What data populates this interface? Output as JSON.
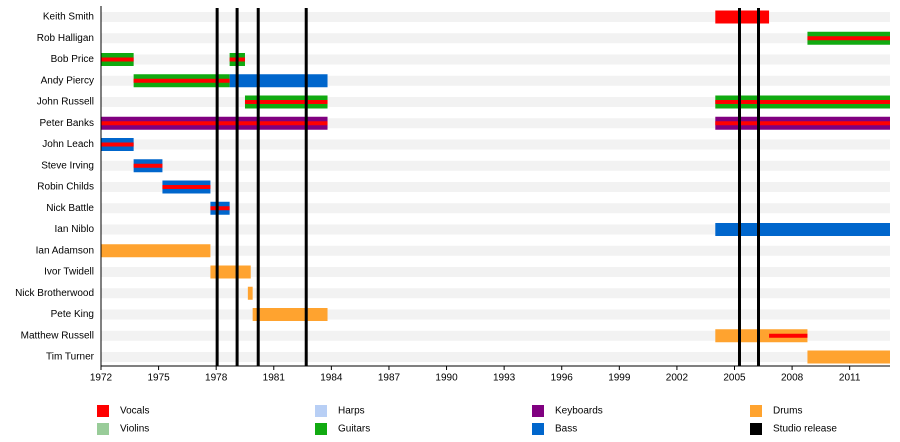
{
  "chart_data": {
    "type": "timeline",
    "xlim": [
      1972,
      2013.1
    ],
    "xticks": [
      1972,
      1975,
      1978,
      1981,
      1984,
      1987,
      1990,
      1993,
      1996,
      1999,
      2002,
      2005,
      2008,
      2011
    ],
    "roles": [
      {
        "name": "Vocals",
        "color": "#ff0000"
      },
      {
        "name": "Violins",
        "color": "#99cc99"
      },
      {
        "name": "Harps",
        "color": "#b8cff5"
      },
      {
        "name": "Guitars",
        "color": "#11aa11"
      },
      {
        "name": "Keyboards",
        "color": "#800080"
      },
      {
        "name": "Bass",
        "color": "#0066cc"
      },
      {
        "name": "Drums",
        "color": "#ffa32f"
      },
      {
        "name": "Studio release",
        "color": "#000000"
      }
    ],
    "releases": [
      1978.05,
      1979.09,
      1980.19,
      1982.69,
      2005.26,
      2006.25
    ],
    "members": [
      {
        "name": "Keith Smith",
        "bars": [
          {
            "start": 2004.0,
            "end": 2006.8,
            "role": 0
          }
        ],
        "stripes": []
      },
      {
        "name": "Rob Halligan",
        "bars": [
          {
            "start": 2008.8,
            "end": 2013.1,
            "role": 3
          }
        ],
        "stripes": [
          {
            "start": 2008.8,
            "end": 2013.1,
            "role": 0
          }
        ]
      },
      {
        "name": "Bob Price",
        "bars": [
          {
            "start": 1972.0,
            "end": 1973.7,
            "role": 3
          },
          {
            "start": 1978.7,
            "end": 1979.5,
            "role": 3
          }
        ],
        "stripes": [
          {
            "start": 1972.0,
            "end": 1973.7,
            "role": 0
          },
          {
            "start": 1978.7,
            "end": 1979.5,
            "role": 0
          }
        ]
      },
      {
        "name": "Andy Piercy",
        "bars": [
          {
            "start": 1973.7,
            "end": 1978.7,
            "role": 3
          },
          {
            "start": 1978.7,
            "end": 1983.8,
            "role": 5
          }
        ],
        "stripes": [
          {
            "start": 1973.7,
            "end": 1978.7,
            "role": 0
          }
        ]
      },
      {
        "name": "John Russell",
        "bars": [
          {
            "start": 1979.5,
            "end": 1983.8,
            "role": 3
          },
          {
            "start": 2004.0,
            "end": 2013.1,
            "role": 3
          }
        ],
        "stripes": [
          {
            "start": 1979.5,
            "end": 1983.8,
            "role": 0
          },
          {
            "start": 2004.0,
            "end": 2013.1,
            "role": 0
          }
        ]
      },
      {
        "name": "Peter Banks",
        "bars": [
          {
            "start": 1972.0,
            "end": 1983.8,
            "role": 4
          },
          {
            "start": 2004.0,
            "end": 2013.1,
            "role": 4
          }
        ],
        "stripes": [
          {
            "start": 1972.0,
            "end": 1983.8,
            "role": 0
          },
          {
            "start": 2004.0,
            "end": 2013.1,
            "role": 0
          }
        ]
      },
      {
        "name": "John Leach",
        "bars": [
          {
            "start": 1972.0,
            "end": 1973.7,
            "role": 5
          }
        ],
        "stripes": [
          {
            "start": 1972.0,
            "end": 1973.7,
            "role": 0
          }
        ]
      },
      {
        "name": "Steve Irving",
        "bars": [
          {
            "start": 1973.7,
            "end": 1975.2,
            "role": 5
          }
        ],
        "stripes": [
          {
            "start": 1973.7,
            "end": 1975.2,
            "role": 0
          }
        ]
      },
      {
        "name": "Robin Childs",
        "bars": [
          {
            "start": 1975.2,
            "end": 1977.7,
            "role": 5
          }
        ],
        "stripes": [
          {
            "start": 1975.2,
            "end": 1977.7,
            "role": 0
          }
        ]
      },
      {
        "name": "Nick Battle",
        "bars": [
          {
            "start": 1977.7,
            "end": 1978.7,
            "role": 5
          }
        ],
        "stripes": [
          {
            "start": 1977.7,
            "end": 1978.7,
            "role": 0
          }
        ]
      },
      {
        "name": "Ian Niblo",
        "bars": [
          {
            "start": 2004.0,
            "end": 2013.1,
            "role": 5
          }
        ],
        "stripes": []
      },
      {
        "name": "Ian Adamson",
        "bars": [
          {
            "start": 1972.0,
            "end": 1977.7,
            "role": 6
          }
        ],
        "stripes": []
      },
      {
        "name": "Ivor Twidell",
        "bars": [
          {
            "start": 1977.7,
            "end": 1979.8,
            "role": 6
          }
        ],
        "stripes": []
      },
      {
        "name": "Nick Brotherwood",
        "bars": [
          {
            "start": 1979.65,
            "end": 1979.9,
            "role": 6
          }
        ],
        "stripes": []
      },
      {
        "name": "Pete King",
        "bars": [
          {
            "start": 1979.9,
            "end": 1983.8,
            "role": 6
          }
        ],
        "stripes": []
      },
      {
        "name": "Matthew Russell",
        "bars": [
          {
            "start": 2004.0,
            "end": 2008.8,
            "role": 6
          }
        ],
        "stripes": [
          {
            "start": 2006.8,
            "end": 2008.8,
            "role": 0
          }
        ]
      },
      {
        "name": "Tim Turner",
        "bars": [
          {
            "start": 2008.8,
            "end": 2013.1,
            "role": 6
          }
        ],
        "stripes": []
      }
    ]
  }
}
